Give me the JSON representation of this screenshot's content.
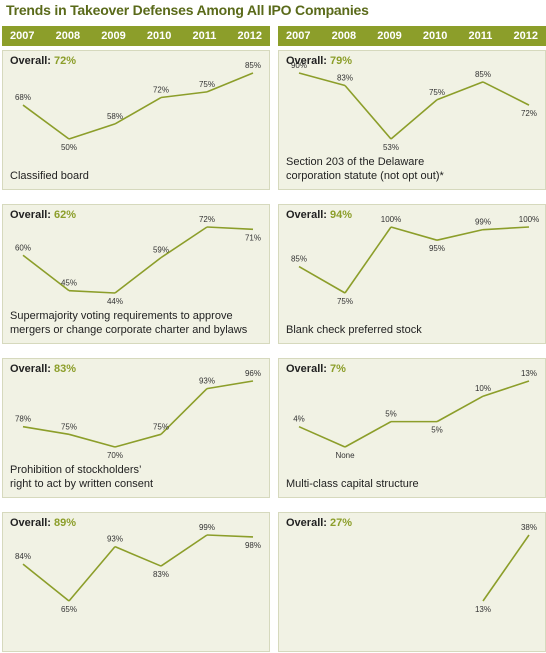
{
  "title": "Trends in Takeover Defenses Among All IPO Companies",
  "years": [
    "2007",
    "2008",
    "2009",
    "2010",
    "2011",
    "2012"
  ],
  "overall_prefix": "Overall: ",
  "colors": {
    "accent": "#8c9e2a",
    "panel_bg": "#f1f2e4",
    "title": "#5a6a1a"
  },
  "chart_data": [
    {
      "type": "line",
      "column": "left",
      "overall": "72%",
      "label_lines": [
        "Classified board"
      ],
      "x": [
        "2007",
        "2008",
        "2009",
        "2010",
        "2011",
        "2012"
      ],
      "values": [
        68,
        50,
        58,
        72,
        75,
        85
      ],
      "labels": [
        "68%",
        "50%",
        "58%",
        "72%",
        "75%",
        "85%"
      ],
      "ylim": [
        50,
        85
      ]
    },
    {
      "type": "line",
      "column": "right",
      "overall": "79%",
      "label_lines": [
        "Section 203 of the Delaware",
        "corporation statute (not opt out)*"
      ],
      "x": [
        "2007",
        "2008",
        "2009",
        "2010",
        "2011",
        "2012"
      ],
      "values": [
        90,
        83,
        53,
        75,
        85,
        72
      ],
      "labels": [
        "90%",
        "83%",
        "53%",
        "75%",
        "85%",
        "72%"
      ],
      "ylim": [
        53,
        90
      ]
    },
    {
      "type": "line",
      "column": "left",
      "overall": "62%",
      "label_lines": [
        "Supermajority voting requirements to approve",
        "mergers or change corporate charter and bylaws"
      ],
      "x": [
        "2007",
        "2008",
        "2009",
        "2010",
        "2011",
        "2012"
      ],
      "values": [
        60,
        45,
        44,
        59,
        72,
        71
      ],
      "labels": [
        "60%",
        "45%",
        "44%",
        "59%",
        "72%",
        "71%"
      ],
      "ylim": [
        44,
        72
      ]
    },
    {
      "type": "line",
      "column": "right",
      "overall": "94%",
      "label_lines": [
        "Blank check preferred stock"
      ],
      "x": [
        "2007",
        "2008",
        "2009",
        "2010",
        "2011",
        "2012"
      ],
      "values": [
        85,
        75,
        100,
        95,
        99,
        100
      ],
      "labels": [
        "85%",
        "75%",
        "100%",
        "95%",
        "99%",
        "100%"
      ],
      "ylim": [
        75,
        100
      ]
    },
    {
      "type": "line",
      "column": "left",
      "overall": "83%",
      "label_lines": [
        "Prohibition of stockholders’",
        "right to act by written consent"
      ],
      "x": [
        "2007",
        "2008",
        "2009",
        "2010",
        "2011",
        "2012"
      ],
      "values": [
        78,
        75,
        70,
        75,
        93,
        96
      ],
      "labels": [
        "78%",
        "75%",
        "70%",
        "75%",
        "93%",
        "96%"
      ],
      "ylim": [
        70,
        96
      ]
    },
    {
      "type": "line",
      "column": "right",
      "overall": "7%",
      "label_lines": [
        "Multi-class capital structure"
      ],
      "x": [
        "2007",
        "2008",
        "2009",
        "2010",
        "2011",
        "2012"
      ],
      "values": [
        4,
        0,
        5,
        5,
        10,
        13
      ],
      "labels": [
        "4%",
        "None",
        "5%",
        "5%",
        "10%",
        "13%"
      ],
      "ylim": [
        0,
        13
      ]
    },
    {
      "type": "line",
      "column": "left",
      "overall": "89%",
      "label_lines": [],
      "x": [
        "2007",
        "2008",
        "2009",
        "2010",
        "2011",
        "2012"
      ],
      "values": [
        84,
        65,
        93,
        83,
        99,
        98
      ],
      "labels": [
        "84%",
        "65%",
        "93%",
        "83%",
        "99%",
        "98%"
      ],
      "ylim": [
        65,
        99
      ]
    },
    {
      "type": "line",
      "column": "right",
      "overall": "27%",
      "label_lines": [],
      "x": [
        "2011",
        "2012"
      ],
      "values": [
        13,
        38
      ],
      "labels": [
        "13%",
        "38%"
      ],
      "ylim": [
        13,
        38
      ]
    }
  ]
}
